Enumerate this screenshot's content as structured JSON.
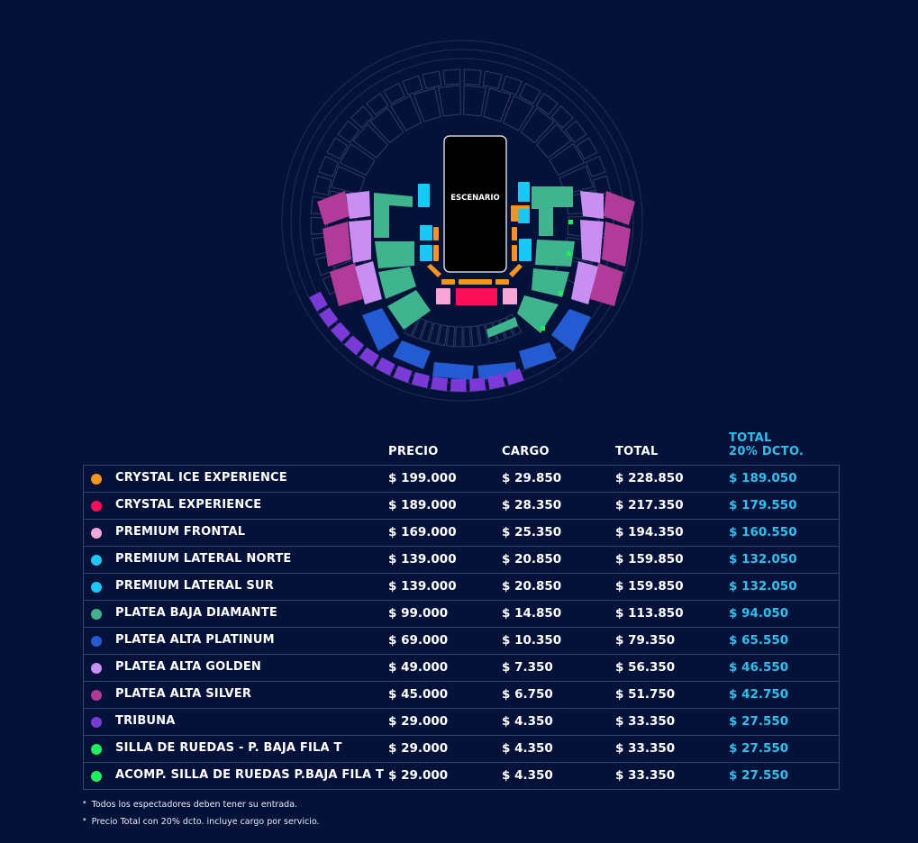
{
  "map": {
    "stage_label": "ESCENARIO",
    "colors": {
      "crystal_ice": "#f7941d",
      "crystal": "#ff0f5a",
      "premium_frontal": "#f8a6d6",
      "premium_lateral": "#17c9f4",
      "platea_baja": "#3fb58e",
      "platea_platinum": "#245bd3",
      "platea_golden": "#c98ef2",
      "platea_silver": "#b23a98",
      "tribuna": "#7a3ad8",
      "wheelchair": "#19f25c",
      "inactive_outline": "#2c3a5e"
    }
  },
  "table": {
    "headers": {
      "precio": "PRECIO",
      "cargo": "CARGO",
      "total": "TOTAL",
      "descuento_1": "TOTAL",
      "descuento_2": "20% DCTO."
    },
    "rows": [
      {
        "color": "#f7941d",
        "name": "CRYSTAL ICE EXPERIENCE",
        "precio": "$ 199.000",
        "cargo": "$ 29.850",
        "total": "$ 228.850",
        "descuento": "$ 189.050"
      },
      {
        "color": "#ff0f5a",
        "name": "CRYSTAL EXPERIENCE",
        "precio": "$ 189.000",
        "cargo": "$ 28.350",
        "total": "$ 217.350",
        "descuento": "$ 179.550"
      },
      {
        "color": "#f8a6d6",
        "name": "PREMIUM FRONTAL",
        "precio": "$ 169.000",
        "cargo": "$ 25.350",
        "total": "$ 194.350",
        "descuento": "$ 160.550"
      },
      {
        "color": "#17c9f4",
        "name": "PREMIUM LATERAL NORTE",
        "precio": "$ 139.000",
        "cargo": "$ 20.850",
        "total": "$ 159.850",
        "descuento": "$ 132.050"
      },
      {
        "color": "#17c9f4",
        "name": "PREMIUM LATERAL SUR",
        "precio": "$ 139.000",
        "cargo": "$ 20.850",
        "total": "$ 159.850",
        "descuento": "$ 132.050"
      },
      {
        "color": "#3fb58e",
        "name": "PLATEA BAJA DIAMANTE",
        "precio": "$ 99.000",
        "cargo": "$ 14.850",
        "total": "$ 113.850",
        "descuento": "$ 94.050"
      },
      {
        "color": "#245bd3",
        "name": "PLATEA ALTA PLATINUM",
        "precio": "$ 69.000",
        "cargo": "$ 10.350",
        "total": "$ 79.350",
        "descuento": "$ 65.550"
      },
      {
        "color": "#c98ef2",
        "name": "PLATEA ALTA GOLDEN",
        "precio": "$ 49.000",
        "cargo": "$ 7.350",
        "total": "$ 56.350",
        "descuento": "$ 46.550"
      },
      {
        "color": "#b23a98",
        "name": "PLATEA ALTA SILVER",
        "precio": "$ 45.000",
        "cargo": "$ 6.750",
        "total": "$ 51.750",
        "descuento": "$ 42.750"
      },
      {
        "color": "#7a3ad8",
        "name": "TRIBUNA",
        "precio": "$ 29.000",
        "cargo": "$ 4.350",
        "total": "$ 33.350",
        "descuento": "$ 27.550"
      },
      {
        "color": "#19f25c",
        "name": "SILLA DE RUEDAS - P. BAJA FILA T",
        "precio": "$ 29.000",
        "cargo": "$ 4.350",
        "total": "$ 33.350",
        "descuento": "$ 27.550"
      },
      {
        "color": "#19f25c",
        "name": "ACOMP. SILLA DE RUEDAS P.BAJA FILA T",
        "precio": "$ 29.000",
        "cargo": "$ 4.350",
        "total": "$ 33.350",
        "descuento": "$ 27.550"
      }
    ]
  },
  "notes": [
    "Todos los espectadores deben tener su entrada.",
    "Precio Total con 20% dcto. incluye cargo por servicio."
  ]
}
